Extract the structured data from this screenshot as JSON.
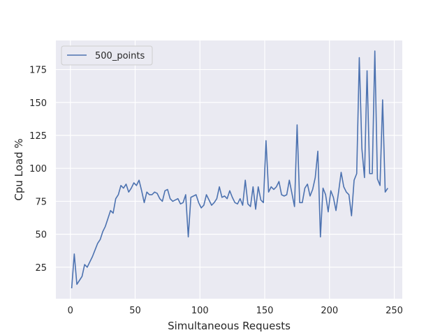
{
  "chart_data": {
    "type": "line",
    "xlabel": "Simultaneous Requests",
    "ylabel": "Cpu Load %",
    "xlim": [
      -11.2,
      256.2
    ],
    "ylim": [
      1.1,
      197.0
    ],
    "xticks": [
      0,
      50,
      100,
      150,
      200,
      250
    ],
    "yticks": [
      25,
      50,
      75,
      100,
      125,
      150,
      175
    ],
    "grid": true,
    "legend_position": "top-left",
    "background_color": "#eaeaf2",
    "series": [
      {
        "name": "500_points",
        "color": "#4c72b0",
        "x": [
          1,
          3,
          5,
          7,
          9,
          11,
          13,
          15,
          17,
          19,
          21,
          23,
          25,
          27,
          29,
          31,
          33,
          35,
          37,
          39,
          41,
          43,
          45,
          47,
          49,
          51,
          53,
          55,
          57,
          59,
          61,
          63,
          65,
          67,
          69,
          71,
          73,
          75,
          77,
          79,
          81,
          83,
          85,
          87,
          89,
          91,
          93,
          95,
          97,
          99,
          101,
          103,
          105,
          107,
          109,
          111,
          113,
          115,
          117,
          119,
          121,
          123,
          125,
          127,
          129,
          131,
          133,
          135,
          137,
          139,
          141,
          143,
          145,
          147,
          149,
          151,
          153,
          155,
          157,
          159,
          161,
          163,
          165,
          167,
          169,
          171,
          173,
          175,
          177,
          179,
          181,
          183,
          185,
          187,
          189,
          191,
          193,
          195,
          197,
          199,
          201,
          203,
          205,
          207,
          209,
          211,
          213,
          215,
          217,
          219,
          221,
          223,
          225,
          227,
          229,
          231,
          233,
          235,
          237,
          239,
          241,
          243,
          245
        ],
        "y": [
          9,
          35,
          12,
          15,
          18,
          27,
          25,
          29,
          33,
          38,
          43,
          46,
          52,
          56,
          62,
          68,
          66,
          77,
          80,
          87,
          85,
          88,
          82,
          85,
          89,
          87,
          91,
          83,
          74,
          82,
          80,
          80,
          82,
          81,
          77,
          75,
          83,
          84,
          77,
          75,
          76,
          77,
          73,
          74,
          80,
          48,
          78,
          79,
          80,
          74,
          70,
          72,
          80,
          76,
          72,
          74,
          77,
          86,
          78,
          79,
          77,
          83,
          78,
          74,
          73,
          77,
          72,
          91,
          73,
          71,
          86,
          69,
          86,
          76,
          74,
          121,
          82,
          86,
          84,
          86,
          90,
          80,
          79,
          80,
          91,
          81,
          71,
          133,
          74,
          74,
          85,
          88,
          79,
          84,
          93,
          113,
          48,
          85,
          80,
          67,
          83,
          78,
          68,
          82,
          97,
          86,
          82,
          80,
          64,
          91,
          96,
          184,
          115,
          93,
          174,
          96,
          96,
          189,
          92,
          87,
          152,
          82,
          85
        ]
      }
    ]
  }
}
